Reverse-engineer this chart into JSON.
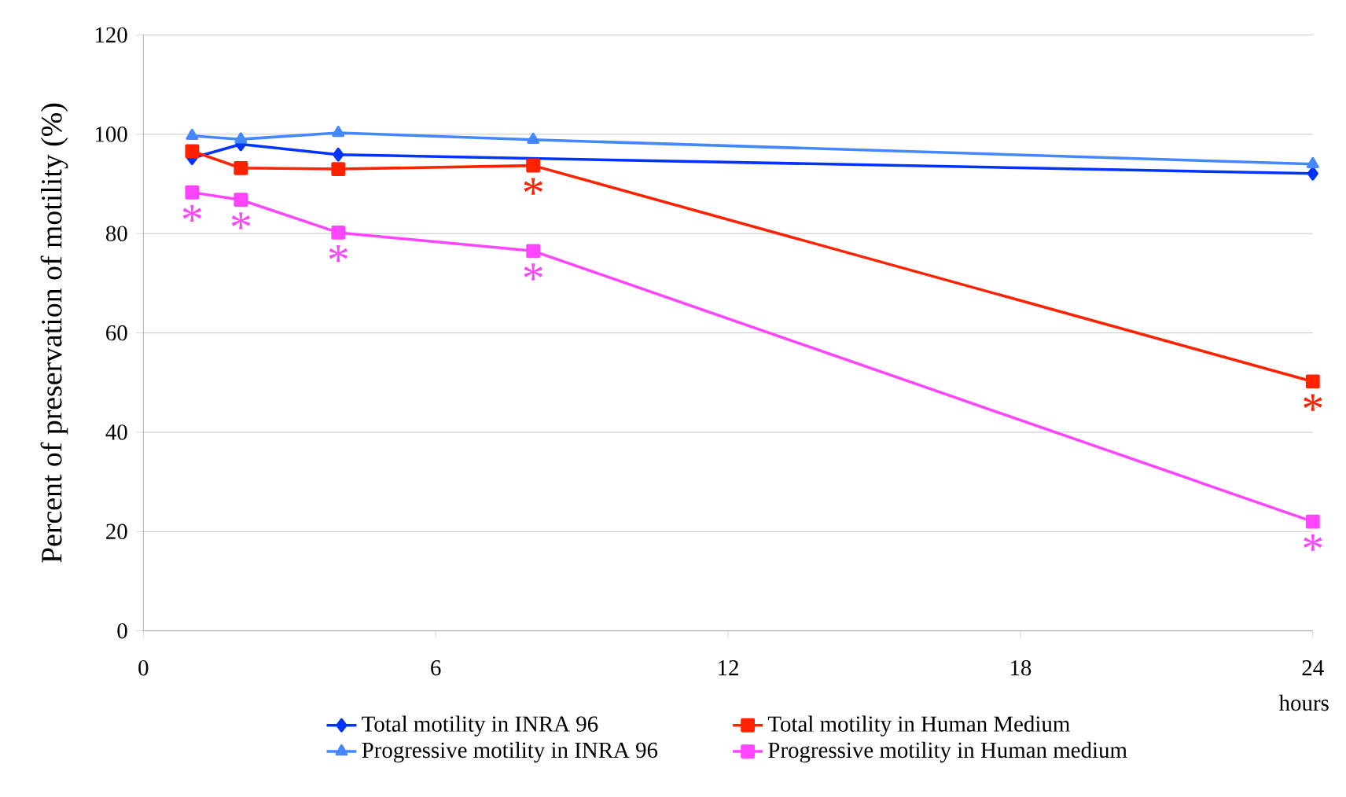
{
  "chart_data": {
    "type": "line",
    "xlabel": "hours",
    "ylabel": "Percent of preservation of motility (%)",
    "x": [
      1,
      2,
      4,
      8,
      24
    ],
    "series": [
      {
        "name": "Total motility in INRA 96",
        "color": "#0033ff",
        "marker": "diamond",
        "values": [
          95.2,
          98,
          95.9,
          null,
          92.1
        ]
      },
      {
        "name": "Total motility in Human Medium",
        "color": "#ff2200",
        "marker": "square",
        "values": [
          96.6,
          93.2,
          93,
          93.7,
          50.2
        ]
      },
      {
        "name": "Progressive motility in INRA 96",
        "color": "#4488ff",
        "marker": "triangle",
        "values": [
          99.7,
          99,
          100.3,
          98.9,
          94
        ]
      },
      {
        "name": "Progressive motility in Human medium",
        "color": "#ff44ff",
        "marker": "square",
        "values": [
          88.3,
          86.8,
          80.2,
          76.5,
          22
        ]
      }
    ],
    "xlim": [
      0,
      24
    ],
    "xticks": [
      0,
      6,
      12,
      18,
      24
    ],
    "ylim": [
      0,
      120
    ],
    "yticks": [
      0,
      20,
      40,
      60,
      80,
      100,
      120
    ],
    "grid": "y",
    "legend": "bottom",
    "annotations": [
      {
        "text": "*",
        "x": 1,
        "y": 88.3
      },
      {
        "text": "*",
        "x": 2,
        "y": 86.8
      },
      {
        "text": "*",
        "x": 4,
        "y": 80.2
      },
      {
        "text": "*",
        "x": 8,
        "y": 93.7
      },
      {
        "text": "*",
        "x": 8,
        "y": 76.5
      },
      {
        "text": "*",
        "x": 24,
        "y": 50.2
      },
      {
        "text": "*",
        "x": 24,
        "y": 22
      }
    ]
  }
}
